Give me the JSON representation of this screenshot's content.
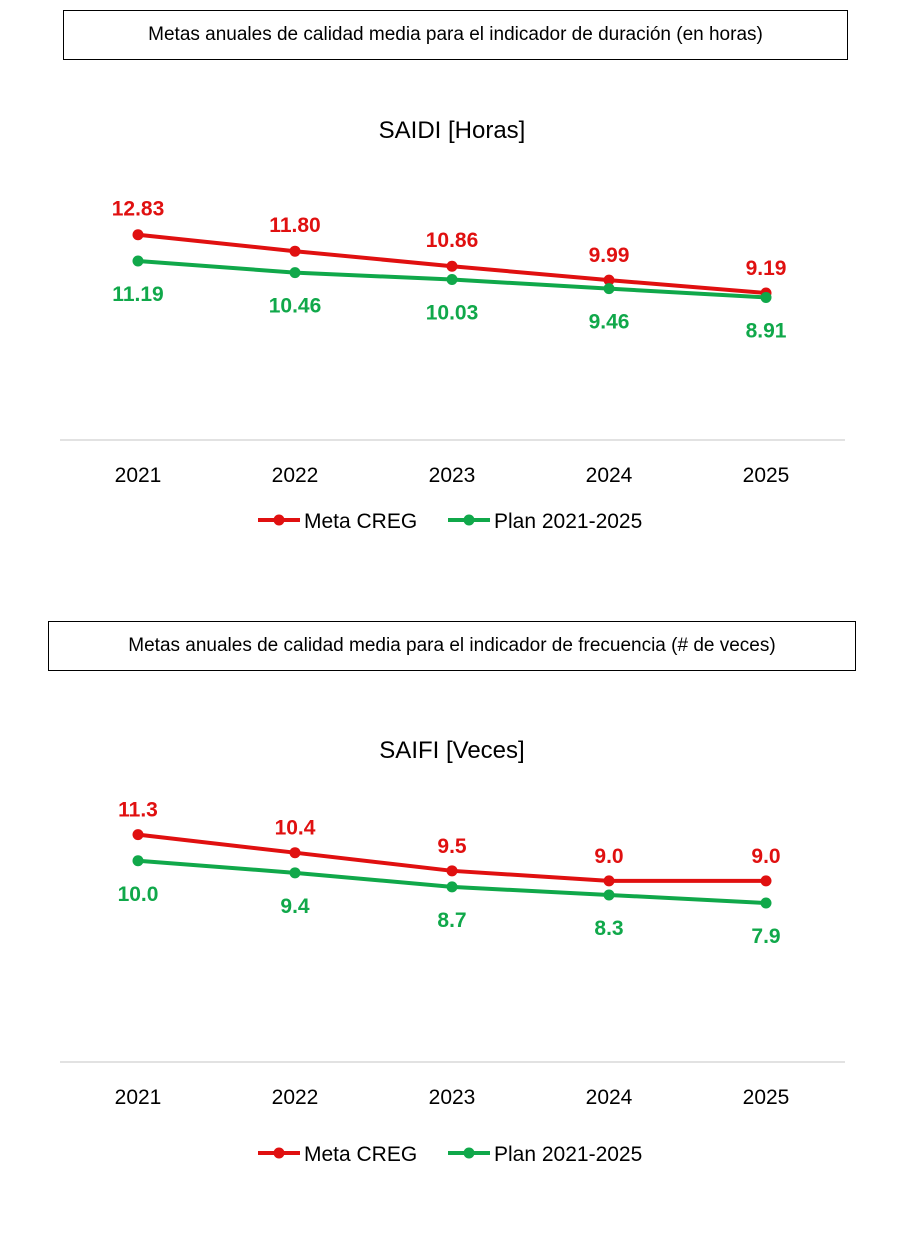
{
  "captions": {
    "saidi": "Metas anuales de calidad media para el indicador de duración (en horas)",
    "saifi": "Metas anuales de calidad media para el indicador de frecuencia (# de veces)"
  },
  "colors": {
    "meta": "#e01010",
    "plan": "#10a84a",
    "axis": "#d9d9d9"
  },
  "chart_data": [
    {
      "type": "line",
      "title": "SAIDI [Horas]",
      "categories": [
        "2021",
        "2022",
        "2023",
        "2024",
        "2025"
      ],
      "series": [
        {
          "name": "Meta CREG",
          "values": [
            12.83,
            11.8,
            10.86,
            9.99,
            9.19
          ],
          "labels": [
            "12.83",
            "11.80",
            "10.86",
            "9.99",
            "9.19"
          ]
        },
        {
          "name": "Plan 2021-2025",
          "values": [
            11.19,
            10.46,
            10.03,
            9.46,
            8.91
          ],
          "labels": [
            "11.19",
            "10.46",
            "10.03",
            "9.46",
            "8.91"
          ]
        }
      ],
      "ylim": [
        0,
        20
      ],
      "grid": false,
      "legend": "bottom"
    },
    {
      "type": "line",
      "title": "SAIFI [Veces]",
      "categories": [
        "2021",
        "2022",
        "2023",
        "2024",
        "2025"
      ],
      "series": [
        {
          "name": "Meta CREG",
          "values": [
            11.3,
            10.4,
            9.5,
            9.0,
            9.0
          ],
          "labels": [
            "11.3",
            "10.4",
            "9.5",
            "9.0",
            "9.0"
          ]
        },
        {
          "name": "Plan 2021-2025",
          "values": [
            10.0,
            9.4,
            8.7,
            8.3,
            7.9
          ],
          "labels": [
            "10.0",
            "9.4",
            "8.7",
            "8.3",
            "7.9"
          ]
        }
      ],
      "ylim": [
        0,
        16
      ],
      "grid": false,
      "legend": "bottom"
    }
  ]
}
